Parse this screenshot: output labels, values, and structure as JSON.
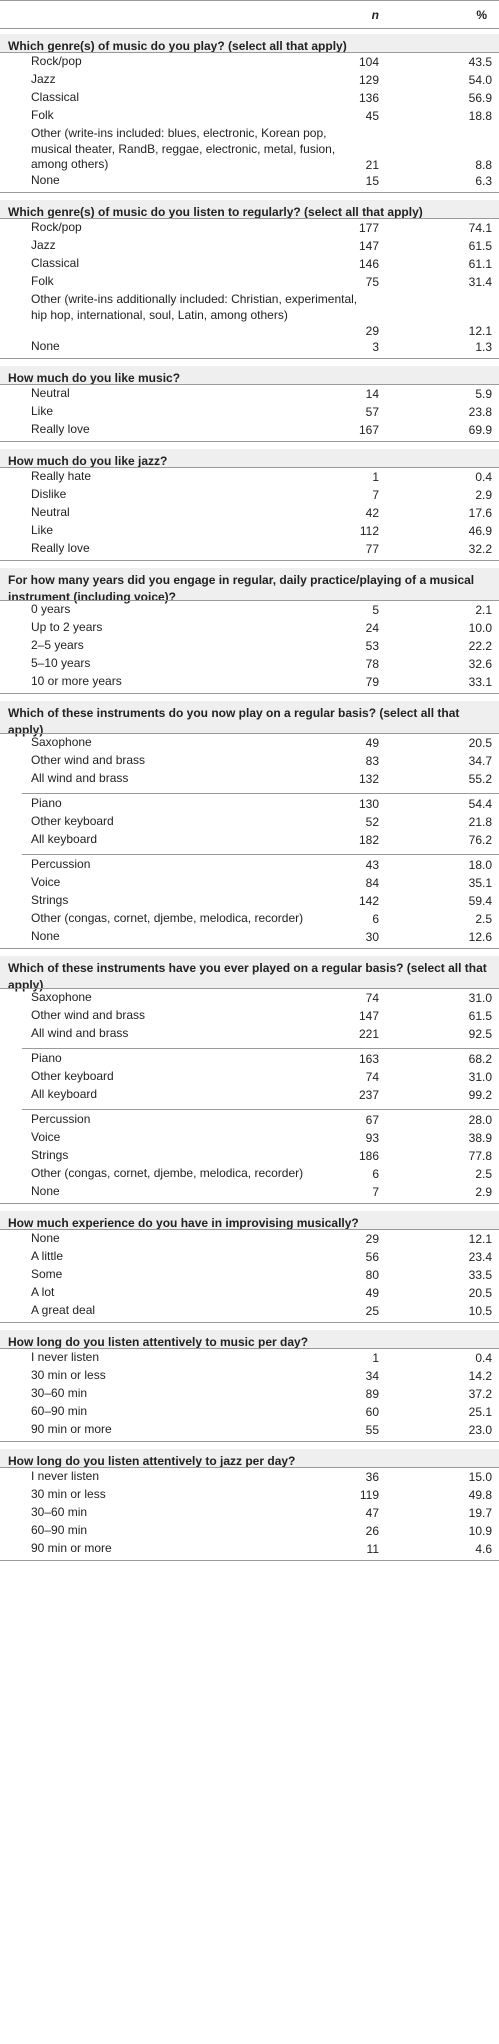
{
  "header": {
    "n": "n",
    "pct": "%"
  },
  "sections": [
    {
      "title": "Which genre(s) of music do you play? (select all that apply)",
      "groups": [
        [
          [
            "Rock/pop",
            "104",
            "43.5"
          ],
          [
            "Jazz",
            "129",
            "54.0"
          ],
          [
            "Classical",
            "136",
            "56.9"
          ],
          [
            "Folk",
            "45",
            "18.8"
          ],
          [
            "Other (write-ins included: blues, electronic, Korean pop, musical theater, RandB, reggae, electronic, metal, fusion, among others)",
            "21",
            "8.8"
          ],
          [
            "None",
            "15",
            "6.3"
          ]
        ]
      ]
    },
    {
      "title": "Which genre(s) of music do you listen to regularly? (select all that apply)",
      "groups": [
        [
          [
            "Rock/pop",
            "177",
            "74.1"
          ],
          [
            "Jazz",
            "147",
            "61.5"
          ],
          [
            "Classical",
            "146",
            "61.1"
          ],
          [
            "Folk",
            "75",
            "31.4"
          ],
          [
            "Other (write-ins additionally included: Christian, experimental, hip hop, international, soul, Latin, among others)",
            "29",
            "12.1"
          ],
          [
            "None",
            "3",
            "1.3"
          ]
        ]
      ]
    },
    {
      "title": "How much do you like music?",
      "groups": [
        [
          [
            "Neutral",
            "14",
            "5.9"
          ],
          [
            "Like",
            "57",
            "23.8"
          ],
          [
            "Really love",
            "167",
            "69.9"
          ]
        ]
      ]
    },
    {
      "title": "How much do you like jazz?",
      "groups": [
        [
          [
            "Really hate",
            "1",
            "0.4"
          ],
          [
            "Dislike",
            "7",
            "2.9"
          ],
          [
            "Neutral",
            "42",
            "17.6"
          ],
          [
            "Like",
            "112",
            "46.9"
          ],
          [
            "Really love",
            "77",
            "32.2"
          ]
        ]
      ]
    },
    {
      "title": "For how many years did you engage in regular, daily practice/playing of a musical instrument (including voice)?",
      "groups": [
        [
          [
            "0 years",
            "5",
            "2.1"
          ],
          [
            "Up to 2 years",
            "24",
            "10.0"
          ],
          [
            "2–5 years",
            "53",
            "22.2"
          ],
          [
            "5–10 years",
            "78",
            "32.6"
          ],
          [
            "10 or more years",
            "79",
            "33.1"
          ]
        ]
      ]
    },
    {
      "title": "Which of these instruments do you now play on a regular basis? (select all that apply)",
      "groups": [
        [
          [
            "Saxophone",
            "49",
            "20.5"
          ],
          [
            "Other wind and brass",
            "83",
            "34.7"
          ],
          [
            "All wind and brass",
            "132",
            "55.2"
          ]
        ],
        [
          [
            "Piano",
            "130",
            "54.4"
          ],
          [
            "Other keyboard",
            "52",
            "21.8"
          ],
          [
            "All keyboard",
            "182",
            "76.2"
          ]
        ],
        [
          [
            "Percussion",
            "43",
            "18.0"
          ],
          [
            "Voice",
            "84",
            "35.1"
          ],
          [
            "Strings",
            "142",
            "59.4"
          ],
          [
            "Other (congas, cornet, djembe, melodica, recorder)",
            "6",
            "2.5"
          ],
          [
            "None",
            "30",
            "12.6"
          ]
        ]
      ]
    },
    {
      "title": "Which of these instruments have you ever played on a regular basis? (select all that apply)",
      "groups": [
        [
          [
            "Saxophone",
            "74",
            "31.0"
          ],
          [
            "Other wind and brass",
            "147",
            "61.5"
          ],
          [
            "All wind and brass",
            "221",
            "92.5"
          ]
        ],
        [
          [
            "Piano",
            "163",
            "68.2"
          ],
          [
            "Other keyboard",
            "74",
            "31.0"
          ],
          [
            "All keyboard",
            "237",
            "99.2"
          ]
        ],
        [
          [
            "Percussion",
            "67",
            "28.0"
          ],
          [
            "Voice",
            "93",
            "38.9"
          ],
          [
            "Strings",
            "186",
            "77.8"
          ],
          [
            "Other (congas, cornet, djembe, melodica, recorder)",
            "6",
            "2.5"
          ],
          [
            "None",
            "7",
            "2.9"
          ]
        ]
      ]
    },
    {
      "title": "How much experience do you have in improvising musically?",
      "groups": [
        [
          [
            "None",
            "29",
            "12.1"
          ],
          [
            "A little",
            "56",
            "23.4"
          ],
          [
            "Some",
            "80",
            "33.5"
          ],
          [
            "A lot",
            "49",
            "20.5"
          ],
          [
            "A great deal",
            "25",
            "10.5"
          ]
        ]
      ]
    },
    {
      "title": "How long do you listen attentively to music per day?",
      "groups": [
        [
          [
            "I never listen",
            "1",
            "0.4"
          ],
          [
            "30 min or less",
            "34",
            "14.2"
          ],
          [
            "30–60 min",
            "89",
            "37.2"
          ],
          [
            "60–90 min",
            "60",
            "25.1"
          ],
          [
            "90 min or more",
            "55",
            "23.0"
          ]
        ]
      ]
    },
    {
      "title": "How long do you listen attentively to jazz per day?",
      "groups": [
        [
          [
            "I never listen",
            "36",
            "15.0"
          ],
          [
            "30 min or less",
            "119",
            "49.8"
          ],
          [
            "30–60 min",
            "47",
            "19.7"
          ],
          [
            "60–90 min",
            "26",
            "10.9"
          ],
          [
            "90 min or more",
            "11",
            "4.6"
          ]
        ]
      ]
    }
  ]
}
